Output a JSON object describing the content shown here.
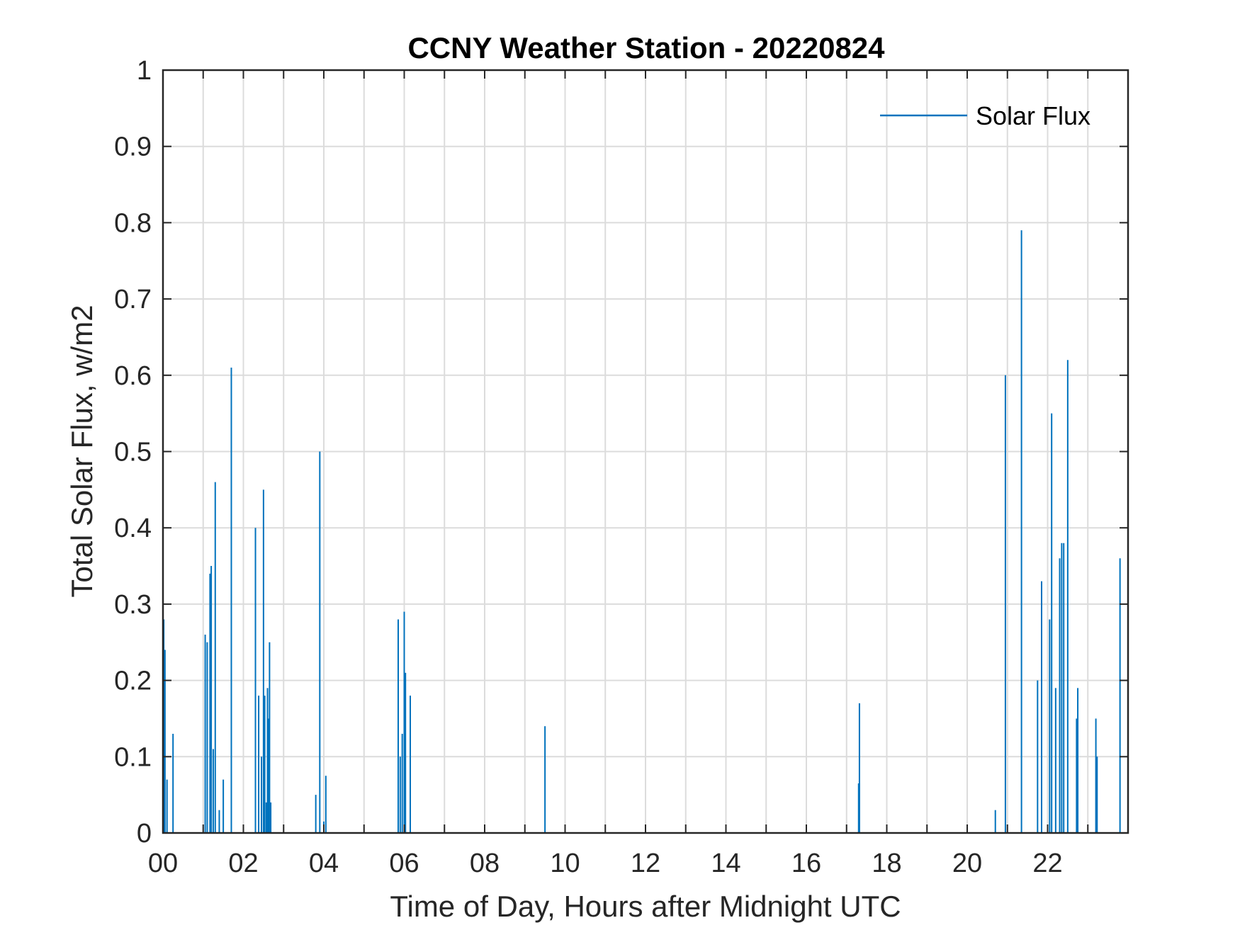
{
  "chart_data": {
    "type": "bar",
    "title": "CCNY Weather Station - 20220824",
    "xlabel": "Time of Day, Hours after Midnight UTC",
    "ylabel": "Total Solar Flux, w/m2",
    "xlim": [
      0,
      24
    ],
    "ylim": [
      0,
      1
    ],
    "grid": true,
    "x_ticks": [
      0,
      2,
      4,
      6,
      8,
      10,
      12,
      14,
      16,
      18,
      20,
      22
    ],
    "x_tick_labels": [
      "00",
      "02",
      "04",
      "06",
      "08",
      "10",
      "12",
      "14",
      "16",
      "18",
      "20",
      "22"
    ],
    "y_ticks": [
      0,
      0.1,
      0.2,
      0.3,
      0.4,
      0.5,
      0.6,
      0.7,
      0.8,
      0.9,
      1
    ],
    "y_tick_labels": [
      "0",
      "0.1",
      "0.2",
      "0.3",
      "0.4",
      "0.5",
      "0.6",
      "0.7",
      "0.8",
      "0.9",
      "1"
    ],
    "legend": {
      "entries": [
        "Solar Flux"
      ],
      "location": "top-right"
    },
    "series": [
      {
        "name": "Solar Flux",
        "color": "#0072BD",
        "x": [
          0.02,
          0.05,
          0.1,
          0.25,
          1.05,
          1.1,
          1.17,
          1.2,
          1.25,
          1.3,
          1.4,
          1.5,
          1.7,
          2.3,
          2.38,
          2.45,
          2.5,
          2.53,
          2.57,
          2.6,
          2.62,
          2.65,
          2.68,
          3.8,
          3.9,
          4.0,
          4.05,
          5.85,
          5.9,
          5.95,
          6.0,
          6.03,
          6.15,
          9.5,
          17.3,
          17.32,
          20.7,
          20.95,
          21.35,
          21.75,
          21.85,
          22.05,
          22.1,
          22.2,
          22.3,
          22.35,
          22.4,
          22.5,
          22.72,
          22.75,
          23.2,
          23.23,
          23.8
        ],
        "y": [
          0.28,
          0.24,
          0.07,
          0.13,
          0.26,
          0.25,
          0.34,
          0.35,
          0.11,
          0.46,
          0.03,
          0.07,
          0.61,
          0.4,
          0.18,
          0.1,
          0.45,
          0.18,
          0.04,
          0.19,
          0.15,
          0.25,
          0.04,
          0.05,
          0.5,
          0.015,
          0.075,
          0.28,
          0.1,
          0.13,
          0.29,
          0.21,
          0.18,
          0.14,
          0.065,
          0.17,
          0.03,
          0.6,
          0.79,
          0.2,
          0.33,
          0.28,
          0.55,
          0.19,
          0.36,
          0.38,
          0.38,
          0.62,
          0.15,
          0.19,
          0.15,
          0.1,
          0.36
        ]
      }
    ]
  }
}
